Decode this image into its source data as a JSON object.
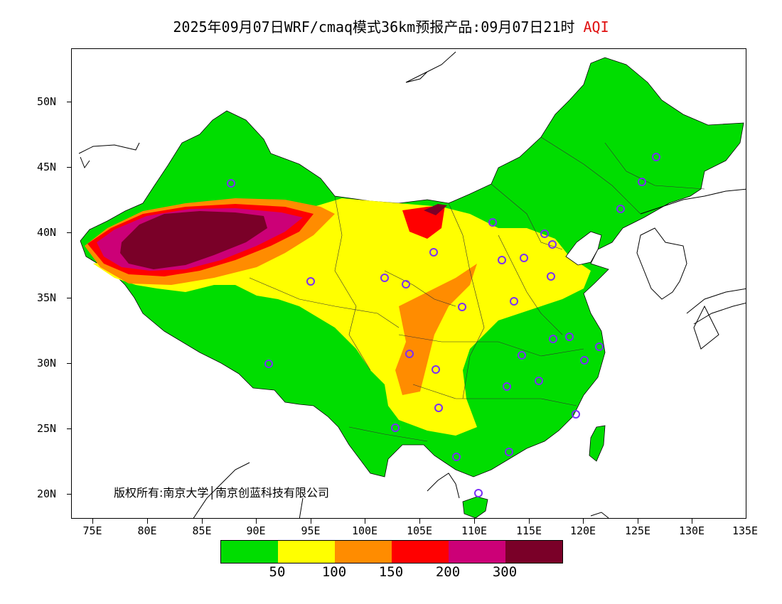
{
  "title": {
    "main": "2025年09月07日WRF/cmaq模式36km预报产品:09月07日21时",
    "variable": "AQI"
  },
  "axes": {
    "y_labels": [
      "50N",
      "45N",
      "40N",
      "35N",
      "30N",
      "25N",
      "20N"
    ],
    "x_labels": [
      "75E",
      "80E",
      "85E",
      "90E",
      "95E",
      "100E",
      "105E",
      "110E",
      "115E",
      "120E",
      "125E",
      "130E",
      "135E"
    ]
  },
  "copyright": "版权所有:南京大学│南京创蓝科技有限公司",
  "legend": {
    "colors": [
      "#00dd00",
      "#ffff00",
      "#ff8c00",
      "#ff0000",
      "#cc0077",
      "#7a0028"
    ],
    "labels": [
      "50",
      "100",
      "150",
      "200",
      "300"
    ]
  },
  "map_colors": {
    "good": "#00dd00",
    "moderate": "#ffff00",
    "usg": "#ff8c00",
    "unhealthy": "#ff0000",
    "very_unhealthy": "#cc0077",
    "hazardous": "#7a0028",
    "station": "#7b2ff7"
  }
}
